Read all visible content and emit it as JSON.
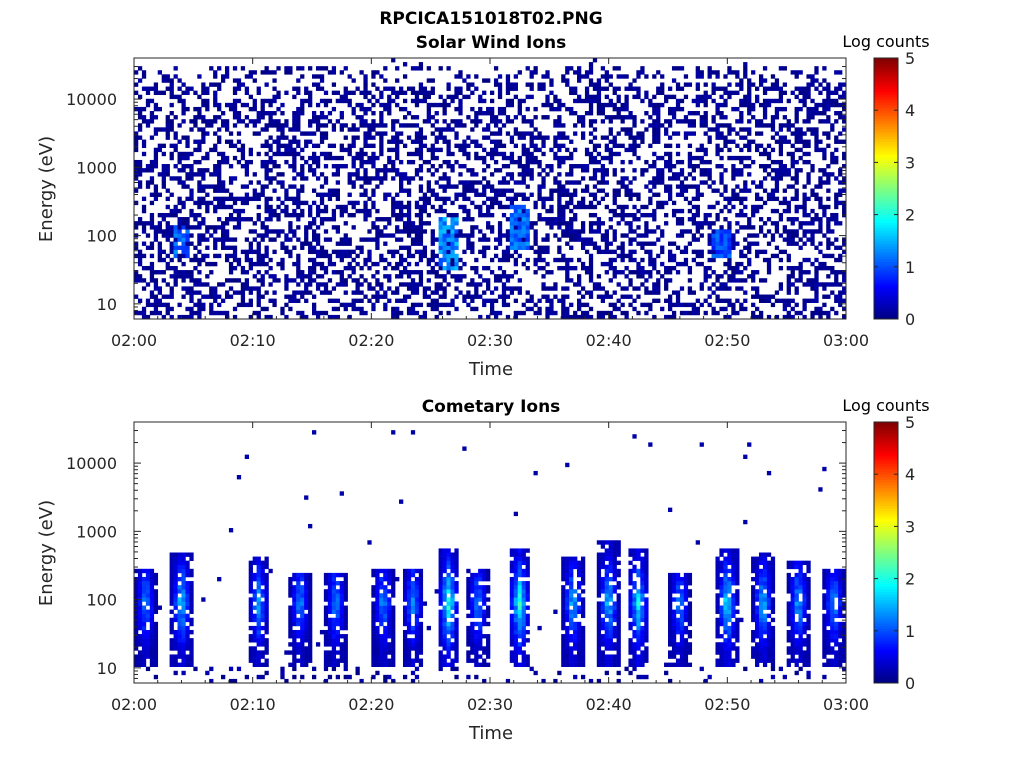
{
  "figure_title": "RPCICA151018T02.PNG",
  "chart_data": [
    {
      "type": "heatmap",
      "title": "Solar Wind Ions",
      "xlabel": "Time",
      "ylabel": "Energy (eV)",
      "x_ticks": [
        "02:00",
        "02:10",
        "02:20",
        "02:30",
        "02:40",
        "02:50",
        "03:00"
      ],
      "xlim": [
        "02:00",
        "03:00"
      ],
      "yscale": "log",
      "y_ticks": [
        10,
        100,
        1000,
        10000
      ],
      "y_tick_labels": [
        "10",
        "100",
        "1000",
        "10000"
      ],
      "ylim": [
        6,
        40000
      ],
      "colorbar": {
        "label": "Log counts",
        "range": [
          0,
          5
        ],
        "ticks": [
          "0",
          "1",
          "2",
          "3",
          "4",
          "5"
        ],
        "colormap": "jet"
      },
      "grid": false,
      "description_values": {
        "background_log_counts": 0.2,
        "notable_peaks": [
          {
            "time": "02:04",
            "energy_range_eV": [
              40,
              150
            ],
            "log_counts": 1.4
          },
          {
            "time": "02:26.5",
            "energy_range_eV": [
              30,
              200
            ],
            "log_counts": 1.6
          },
          {
            "time": "02:32.5",
            "energy_range_eV": [
              60,
              300
            ],
            "log_counts": 1.4
          },
          {
            "time": "02:49.5",
            "energy_range_eV": [
              50,
              120
            ],
            "log_counts": 1.2
          }
        ]
      }
    },
    {
      "type": "heatmap",
      "title": "Cometary Ions",
      "xlabel": "Time",
      "ylabel": "Energy (eV)",
      "x_ticks": [
        "02:00",
        "02:10",
        "02:20",
        "02:30",
        "02:40",
        "02:50",
        "03:00"
      ],
      "xlim": [
        "02:00",
        "03:00"
      ],
      "yscale": "log",
      "y_ticks": [
        10,
        100,
        1000,
        10000
      ],
      "y_tick_labels": [
        "10",
        "100",
        "1000",
        "10000"
      ],
      "ylim": [
        6,
        40000
      ],
      "colorbar": {
        "label": "Log counts",
        "range": [
          0,
          5
        ],
        "ticks": [
          "0",
          "1",
          "2",
          "3",
          "4",
          "5"
        ],
        "colormap": "jet"
      },
      "grid": false,
      "description_values": {
        "plumes": [
          {
            "time": "02:01",
            "top_eV": 300,
            "peak_log_counts": 1.6
          },
          {
            "time": "02:04",
            "top_eV": 500,
            "peak_log_counts": 2.0
          },
          {
            "time": "02:10.5",
            "top_eV": 400,
            "peak_log_counts": 1.7
          },
          {
            "time": "02:14",
            "top_eV": 250,
            "peak_log_counts": 1.6
          },
          {
            "time": "02:17",
            "top_eV": 250,
            "peak_log_counts": 1.6
          },
          {
            "time": "02:21",
            "top_eV": 300,
            "peak_log_counts": 1.6
          },
          {
            "time": "02:23.5",
            "top_eV": 300,
            "peak_log_counts": 1.6
          },
          {
            "time": "02:26.5",
            "top_eV": 600,
            "peak_log_counts": 2.4
          },
          {
            "time": "02:29",
            "top_eV": 300,
            "peak_log_counts": 1.6
          },
          {
            "time": "02:32.5",
            "top_eV": 600,
            "peak_log_counts": 2.4
          },
          {
            "time": "02:37",
            "top_eV": 450,
            "peak_log_counts": 1.9
          },
          {
            "time": "02:40",
            "top_eV": 700,
            "peak_log_counts": 2.0
          },
          {
            "time": "02:42.5",
            "top_eV": 600,
            "peak_log_counts": 2.1
          },
          {
            "time": "02:46",
            "top_eV": 250,
            "peak_log_counts": 1.6
          },
          {
            "time": "02:50",
            "top_eV": 600,
            "peak_log_counts": 2.2
          },
          {
            "time": "02:53",
            "top_eV": 500,
            "peak_log_counts": 1.9
          },
          {
            "time": "02:56",
            "top_eV": 350,
            "peak_log_counts": 1.8
          },
          {
            "time": "02:59",
            "top_eV": 300,
            "peak_log_counts": 1.7
          }
        ]
      }
    }
  ]
}
